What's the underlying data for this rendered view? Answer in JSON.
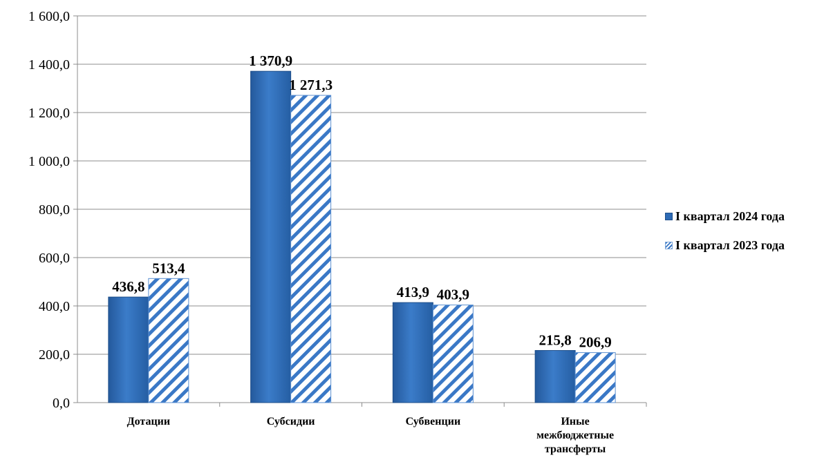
{
  "chart_data": {
    "type": "bar",
    "categories": [
      "Дотации",
      "Субсидии",
      "Субвенции",
      "Иные межбюджетные трансферты"
    ],
    "series": [
      {
        "name": "I квартал 2024 года",
        "values": [
          436.8,
          1370.9,
          413.9,
          215.8
        ],
        "labels": [
          "436,8",
          "1 370,9",
          "413,9",
          "215,8"
        ]
      },
      {
        "name": "I квартал 2023 года",
        "values": [
          513.4,
          1271.3,
          403.9,
          206.9
        ],
        "labels": [
          "513,4",
          "1 271,3",
          "403,9",
          "206,9"
        ]
      }
    ],
    "y_ticks": [
      "0,0",
      "200,0",
      "400,0",
      "600,0",
      "800,0",
      "1 000,0",
      "1 200,0",
      "1 400,0",
      "1 600,0"
    ],
    "ylim": [
      0,
      1600
    ],
    "grid": true,
    "legend_position": "right",
    "colors": {
      "series_2024": "#2e6bb5",
      "series_2023_stripe": "#3a78c6"
    }
  }
}
